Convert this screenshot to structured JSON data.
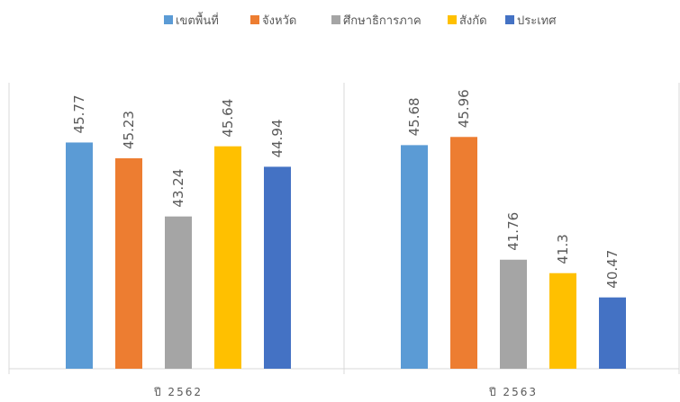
{
  "chart_data": {
    "type": "bar",
    "categories": [
      "ปี 2562",
      "ปี 2563"
    ],
    "series": [
      {
        "name": "เขตพื้นที่",
        "color": "#5B9BD5",
        "values": [
          45.77,
          45.68
        ]
      },
      {
        "name": "จังหวัด",
        "color": "#ED7D31",
        "values": [
          45.23,
          45.96
        ]
      },
      {
        "name": "ศึกษาธิการภาค",
        "color": "#A5A5A5",
        "values": [
          43.24,
          41.76
        ]
      },
      {
        "name": "สังกัด",
        "color": "#FFC000",
        "values": [
          45.64,
          41.3
        ]
      },
      {
        "name": "ประเทศ",
        "color": "#4472C4",
        "values": [
          44.94,
          40.47
        ]
      }
    ],
    "data_labels": [
      [
        "45.77",
        "45.23",
        "43.24",
        "45.64",
        "44.94"
      ],
      [
        "45.68",
        "45.96",
        "41.76",
        "41.3",
        "40.47"
      ]
    ],
    "ylim": [
      38.03,
      46.29
    ],
    "legend_position": "top",
    "data_label_rotation": "vertical",
    "grid": false,
    "category_separators": true,
    "colors": {
      "axis": "#D9D9D9",
      "text": "#595959",
      "background": "#FFFFFF"
    }
  }
}
